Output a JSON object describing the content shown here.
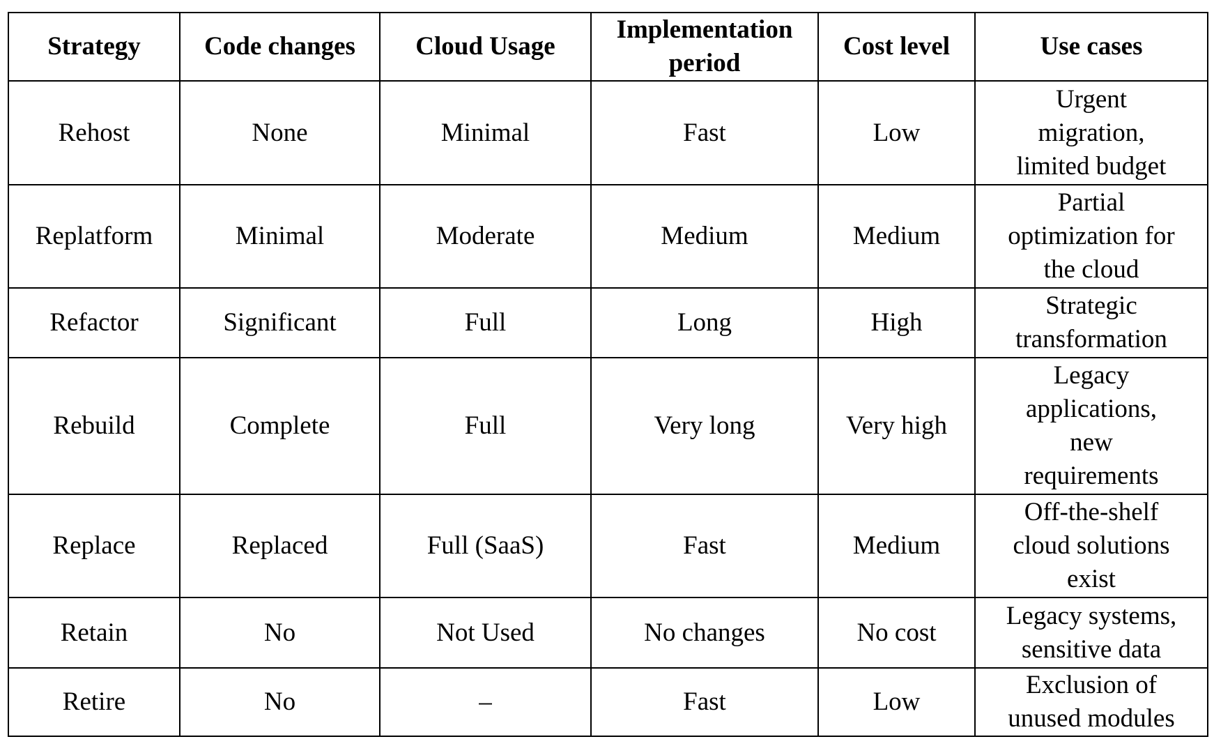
{
  "table": {
    "header": [
      "Strategy",
      "Code changes",
      "Cloud Usage",
      "Implementation\nperiod",
      "Cost level",
      "Use cases"
    ],
    "rows": [
      [
        "Rehost",
        "None",
        "Minimal",
        "Fast",
        "Low",
        "Urgent\nmigration,\nlimited budget"
      ],
      [
        "Replatform",
        "Minimal",
        "Moderate",
        "Medium",
        "Medium",
        "Partial\noptimization for\nthe cloud"
      ],
      [
        "Refactor",
        "Significant",
        "Full",
        "Long",
        "High",
        "Strategic\ntransformation"
      ],
      [
        "Rebuild",
        "Complete",
        "Full",
        "Very long",
        "Very high",
        "Legacy\napplications,\nnew\nrequirements"
      ],
      [
        "Replace",
        "Replaced",
        "Full (SaaS)",
        "Fast",
        "Medium",
        "Off-the-shelf\ncloud solutions\nexist"
      ],
      [
        "Retain",
        "No",
        "Not Used",
        "No changes",
        "No cost",
        "Legacy systems,\nsensitive data"
      ],
      [
        "Retire",
        "No",
        "–",
        "Fast",
        "Low",
        "Exclusion of\nunused modules"
      ]
    ]
  }
}
